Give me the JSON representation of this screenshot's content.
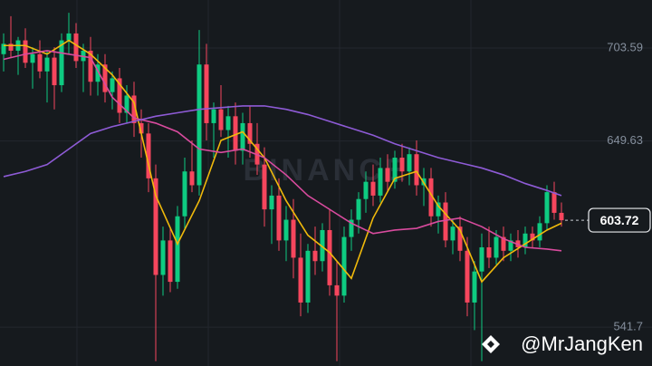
{
  "chart_data": {
    "type": "candlestick",
    "up_color": "#0ecb81",
    "down_color": "#f6465d",
    "ylim": [
      519.2,
      731.4
    ],
    "yticks": [
      703.59,
      649.63,
      541.7
    ],
    "grid": true,
    "last_price": 603.72,
    "watermark": "BINANCE",
    "credit": "@MrJangKen",
    "open": [
      700,
      706,
      702,
      708,
      695,
      700,
      690,
      698,
      682,
      708,
      712,
      696,
      702,
      684,
      694,
      678,
      686,
      666,
      676,
      660,
      654,
      628,
      572,
      592,
      568,
      606,
      632,
      624,
      694,
      660,
      668,
      656,
      664,
      644,
      660,
      648,
      636,
      610,
      618,
      592,
      604,
      582,
      556,
      586,
      580,
      598,
      566,
      560,
      594,
      604,
      616,
      626,
      618,
      634,
      626,
      640,
      632,
      642,
      624,
      628,
      606,
      614,
      592,
      600,
      586,
      556,
      574,
      588,
      582,
      594,
      586,
      592,
      588,
      596,
      592,
      602,
      620,
      608
    ],
    "high": [
      712,
      722,
      710,
      715,
      704,
      708,
      702,
      704,
      712,
      724,
      718,
      706,
      710,
      700,
      700,
      690,
      692,
      682,
      684,
      668,
      660,
      636,
      600,
      600,
      612,
      640,
      650,
      714,
      706,
      672,
      682,
      670,
      672,
      666,
      670,
      660,
      646,
      624,
      628,
      612,
      616,
      596,
      590,
      600,
      602,
      610,
      580,
      600,
      610,
      620,
      632,
      636,
      640,
      642,
      644,
      648,
      646,
      650,
      634,
      634,
      618,
      620,
      604,
      606,
      594,
      580,
      596,
      600,
      598,
      600,
      596,
      598,
      600,
      600,
      606,
      624,
      626,
      614
    ],
    "low": [
      690,
      698,
      688,
      692,
      680,
      686,
      672,
      668,
      678,
      700,
      692,
      678,
      676,
      676,
      672,
      668,
      660,
      660,
      652,
      640,
      620,
      522,
      560,
      562,
      564,
      598,
      620,
      618,
      650,
      640,
      652,
      640,
      636,
      636,
      640,
      630,
      600,
      590,
      586,
      580,
      570,
      548,
      550,
      572,
      574,
      560,
      522,
      556,
      586,
      596,
      608,
      612,
      614,
      620,
      622,
      626,
      624,
      618,
      612,
      600,
      596,
      588,
      584,
      580,
      548,
      540,
      522,
      576,
      578,
      580,
      580,
      582,
      584,
      588,
      588,
      598,
      604,
      600
    ],
    "close": [
      706,
      702,
      708,
      695,
      700,
      690,
      698,
      682,
      708,
      712,
      696,
      702,
      684,
      694,
      678,
      686,
      666,
      676,
      660,
      654,
      628,
      572,
      592,
      568,
      606,
      632,
      624,
      694,
      660,
      668,
      656,
      664,
      644,
      660,
      648,
      636,
      610,
      618,
      592,
      604,
      582,
      556,
      586,
      580,
      598,
      566,
      560,
      594,
      604,
      616,
      626,
      618,
      634,
      626,
      640,
      632,
      642,
      624,
      628,
      606,
      614,
      592,
      600,
      586,
      556,
      574,
      588,
      582,
      594,
      586,
      592,
      588,
      596,
      592,
      602,
      620,
      608,
      603.72
    ],
    "lines": [
      {
        "color": "#f0b90b",
        "x": [
          0,
          3,
          6,
          9,
          12,
          15,
          18,
          21,
          24,
          27,
          30,
          33,
          36,
          39,
          42,
          45,
          48,
          51,
          54,
          57,
          60,
          63,
          66,
          69,
          72,
          75,
          77
        ],
        "values": [
          705,
          705,
          700,
          708,
          700,
          688,
          672,
          618,
          590,
          615,
          650,
          655,
          640,
          615,
          595,
          585,
          570,
          605,
          628,
          632,
          612,
          598,
          568,
          582,
          590,
          598,
          602
        ]
      },
      {
        "color": "#d94b9e",
        "x": [
          0,
          3,
          6,
          9,
          12,
          15,
          18,
          21,
          24,
          27,
          30,
          33,
          36,
          39,
          42,
          45,
          48,
          51,
          54,
          57,
          60,
          63,
          66,
          69,
          72,
          75,
          77
        ],
        "values": [
          697,
          700,
          702,
          700,
          698,
          675,
          663,
          660,
          655,
          645,
          643,
          645,
          640,
          630,
          618,
          610,
          602,
          596,
          598,
          599,
          603,
          605,
          600,
          593,
          588,
          587,
          586
        ]
      },
      {
        "color": "#8e5bd6",
        "x": [
          0,
          3,
          6,
          9,
          12,
          15,
          18,
          21,
          24,
          27,
          30,
          33,
          36,
          39,
          42,
          45,
          48,
          51,
          54,
          57,
          60,
          63,
          66,
          69,
          72,
          75,
          77
        ],
        "values": [
          629,
          632,
          636,
          645,
          654,
          658,
          661,
          664,
          666,
          668,
          669,
          670,
          670,
          668,
          665,
          661,
          657,
          653,
          648,
          644,
          640,
          637,
          634,
          630,
          625,
          621,
          618
        ]
      }
    ]
  }
}
